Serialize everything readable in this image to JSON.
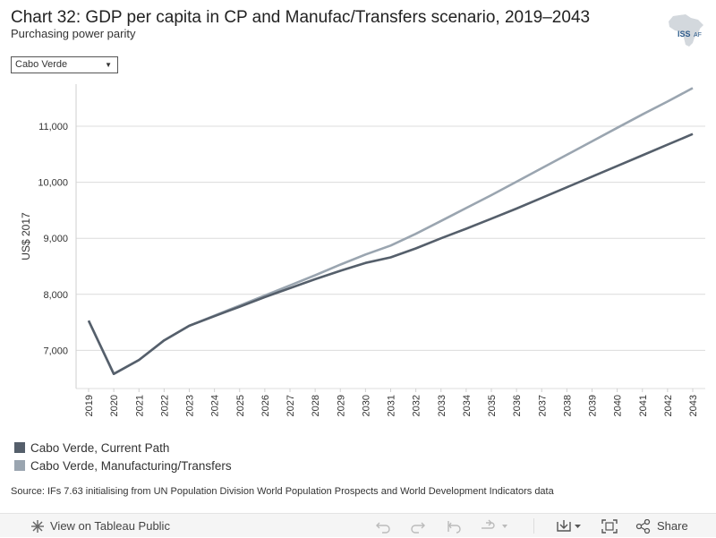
{
  "title": "Chart 32: GDP per capita in CP and Manufac/Transfers scenario, 2019–2043",
  "subtitle": "Purchasing power parity",
  "logo_text": "ISSAFRICA",
  "logo_short": "ISS",
  "logo_suffix": "AF",
  "dropdown": {
    "selected": "Cabo Verde",
    "icon": "caret-down-icon"
  },
  "legend": [
    {
      "label": "Cabo Verde, Current Path",
      "color": "#555f6b"
    },
    {
      "label": "Cabo Verde, Manufacturing/Transfers",
      "color": "#9aa5b0"
    }
  ],
  "source": "Source: IFs 7.63 initialising from UN Population Division World Population Prospects and World Development Indicators data",
  "footer": {
    "view_label": "View on Tableau Public",
    "share_label": "Share"
  },
  "chart_data": {
    "type": "line",
    "title": "Chart 32: GDP per capita in CP and Manufac/Transfers scenario, 2019–2043",
    "xlabel": "",
    "ylabel": "US$ 2017",
    "ylim": [
      6320,
      11750
    ],
    "yticks": [
      7000,
      8000,
      9000,
      10000,
      11000
    ],
    "ytick_labels": [
      "7,000",
      "8,000",
      "9,000",
      "10,000",
      "11,000"
    ],
    "x": [
      "2019",
      "2020",
      "2021",
      "2022",
      "2023",
      "2024",
      "2025",
      "2026",
      "2027",
      "2028",
      "2029",
      "2030",
      "2031",
      "2032",
      "2033",
      "2034",
      "2035",
      "2036",
      "2037",
      "2038",
      "2039",
      "2040",
      "2041",
      "2042",
      "2043"
    ],
    "series": [
      {
        "name": "Cabo Verde, Manufacturing/Transfers",
        "color": "#9aa5b0",
        "values": [
          7530,
          6580,
          6830,
          7180,
          7440,
          7620,
          7800,
          7980,
          8160,
          8340,
          8530,
          8710,
          8870,
          9080,
          9310,
          9540,
          9770,
          10010,
          10250,
          10490,
          10730,
          10970,
          11210,
          11440,
          11680
        ]
      },
      {
        "name": "Cabo Verde, Current Path",
        "color": "#555f6b",
        "values": [
          7530,
          6580,
          6830,
          7180,
          7440,
          7610,
          7780,
          7950,
          8110,
          8270,
          8420,
          8560,
          8660,
          8820,
          9000,
          9170,
          9350,
          9530,
          9720,
          9910,
          10100,
          10290,
          10480,
          10670,
          10860
        ]
      }
    ]
  }
}
